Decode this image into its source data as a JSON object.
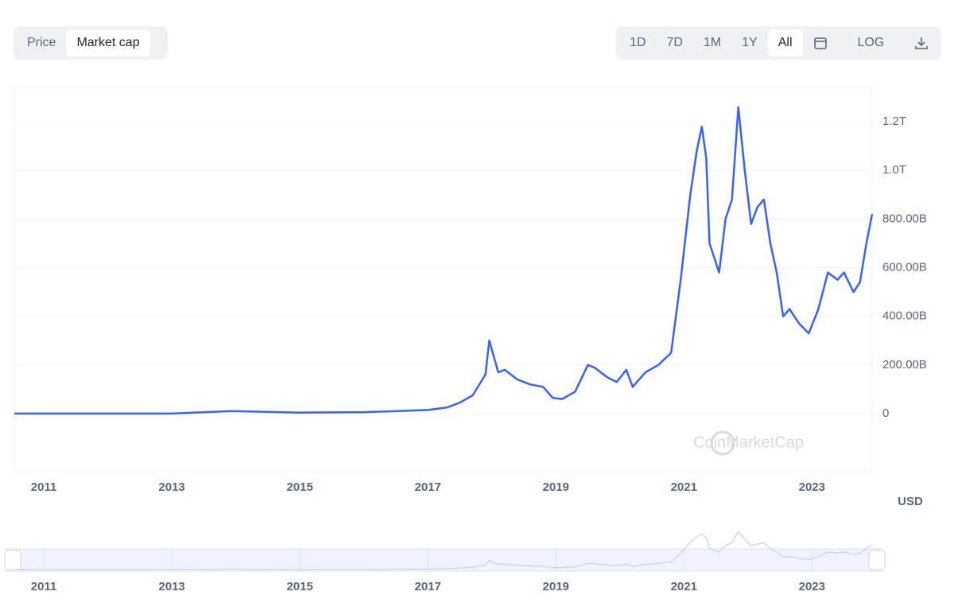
{
  "ui": {
    "tabs": [
      "Price",
      "Market cap"
    ],
    "ranges": [
      "1D",
      "7D",
      "1M",
      "1Y",
      "All"
    ],
    "log": "LOG",
    "currency": "USD",
    "watermark": "CoinMarketCap"
  },
  "chart_data": {
    "type": "line",
    "color": "#3861fb",
    "x": [
      2010.54,
      2011.5,
      2012.5,
      2013.0,
      2013.9,
      2014.0,
      2015.0,
      2016.0,
      2016.5,
      2017.0,
      2017.3,
      2017.5,
      2017.7,
      2017.9,
      2017.96,
      2018.1,
      2018.2,
      2018.4,
      2018.6,
      2018.8,
      2018.95,
      2019.1,
      2019.3,
      2019.5,
      2019.6,
      2019.8,
      2019.95,
      2020.1,
      2020.2,
      2020.4,
      2020.6,
      2020.8,
      2020.95,
      2021.1,
      2021.2,
      2021.28,
      2021.35,
      2021.4,
      2021.55,
      2021.65,
      2021.75,
      2021.85,
      2021.95,
      2022.05,
      2022.15,
      2022.25,
      2022.35,
      2022.45,
      2022.55,
      2022.65,
      2022.8,
      2022.95,
      2023.1,
      2023.25,
      2023.4,
      2023.5,
      2023.65,
      2023.75,
      2023.85,
      2023.94
    ],
    "values": [
      0,
      0.1,
      0.1,
      0.2,
      10,
      10,
      4,
      6,
      10,
      15,
      25,
      45,
      75,
      160,
      300,
      170,
      180,
      140,
      120,
      110,
      65,
      60,
      90,
      200,
      190,
      150,
      130,
      180,
      110,
      170,
      200,
      250,
      550,
      900,
      1080,
      1180,
      1050,
      700,
      580,
      800,
      880,
      1260,
      1000,
      780,
      850,
      880,
      700,
      580,
      400,
      430,
      370,
      330,
      430,
      580,
      550,
      580,
      500,
      540,
      700,
      820
    ],
    "xlim": [
      2010.54,
      2023.94
    ],
    "xticks": [
      2011,
      2013,
      2015,
      2017,
      2019,
      2021,
      2023
    ],
    "ylim": [
      -239,
      1341
    ],
    "yticks": [
      0,
      {
        "value": 200,
        "label": "200.00B"
      },
      {
        "value": 400,
        "label": "400.00B"
      },
      {
        "value": 600,
        "label": "600.00B"
      },
      {
        "value": 800,
        "label": "800.00B"
      },
      {
        "value": 1000,
        "label": "1.0T"
      },
      {
        "value": 1200,
        "label": "1.2T"
      }
    ],
    "grid": true
  }
}
